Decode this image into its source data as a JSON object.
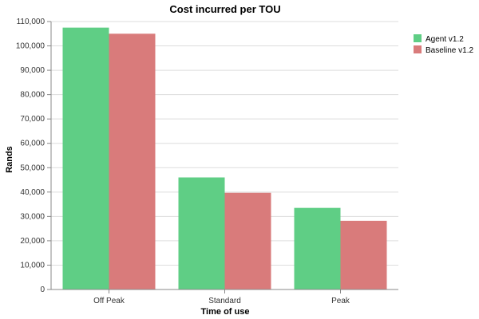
{
  "chart_data": {
    "type": "bar",
    "title": "Cost incurred per TOU",
    "xlabel": "Time of use",
    "ylabel": "Rands",
    "categories": [
      "Off Peak",
      "Standard",
      "Peak"
    ],
    "series": [
      {
        "name": "Agent v1.2",
        "color": "#5fce85",
        "values": [
          107500,
          46000,
          33500
        ]
      },
      {
        "name": "Baseline v1.2",
        "color": "#d97b7b",
        "values": [
          105000,
          39700,
          28200
        ]
      }
    ],
    "ylim": [
      0,
      110000
    ],
    "yticks": [
      0,
      10000,
      20000,
      30000,
      40000,
      50000,
      60000,
      70000,
      80000,
      90000,
      100000,
      110000
    ],
    "ytick_labels": [
      "0",
      "10,000",
      "20,000",
      "30,000",
      "40,000",
      "50,000",
      "60,000",
      "70,000",
      "80,000",
      "90,000",
      "100,000",
      "110,000"
    ],
    "grid": true,
    "legend_position": "top-right"
  }
}
